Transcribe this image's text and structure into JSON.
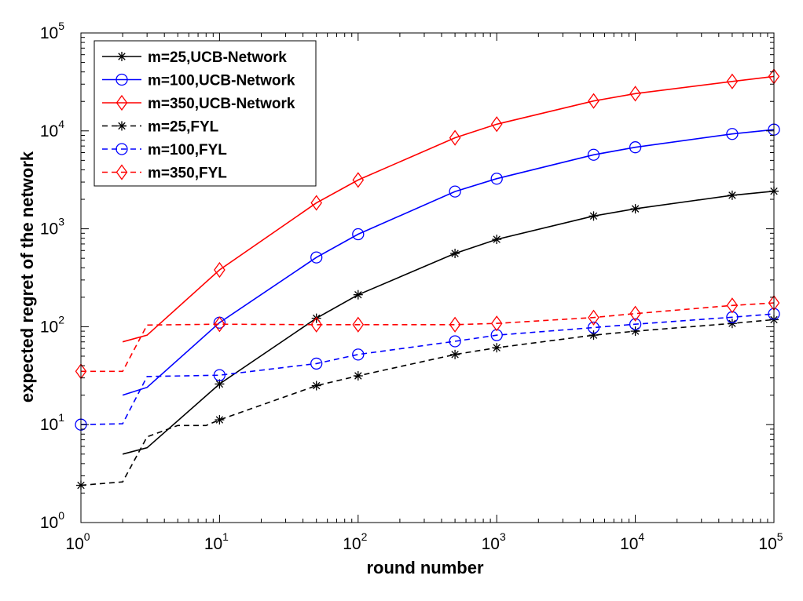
{
  "chart_data": {
    "type": "line",
    "title": "",
    "xlabel": "round number",
    "ylabel": "expected regret of the network",
    "xscale": "log",
    "yscale": "log",
    "xlim": [
      1,
      100000
    ],
    "ylim": [
      1,
      100000
    ],
    "x_ticks": [
      {
        "value": 1,
        "base": "10",
        "exp": "0"
      },
      {
        "value": 10,
        "base": "10",
        "exp": "1"
      },
      {
        "value": 100,
        "base": "10",
        "exp": "2"
      },
      {
        "value": 1000,
        "base": "10",
        "exp": "3"
      },
      {
        "value": 10000,
        "base": "10",
        "exp": "4"
      },
      {
        "value": 100000,
        "base": "10",
        "exp": "5"
      }
    ],
    "y_ticks": [
      {
        "value": 1,
        "base": "10",
        "exp": "0"
      },
      {
        "value": 10,
        "base": "10",
        "exp": "1"
      },
      {
        "value": 100,
        "base": "10",
        "exp": "2"
      },
      {
        "value": 1000,
        "base": "10",
        "exp": "3"
      },
      {
        "value": 10000,
        "base": "10",
        "exp": "4"
      },
      {
        "value": 100000,
        "base": "10",
        "exp": "5"
      }
    ],
    "grid": false,
    "legend_position": "top-left",
    "series": [
      {
        "name": "m=25,UCB-Network",
        "color": "#000000",
        "dash": "solid",
        "marker": "asterisk",
        "x": [
          2,
          3,
          10,
          50,
          100,
          500,
          1000,
          5000,
          10000,
          50000,
          100000
        ],
        "y": [
          5,
          5.8,
          26,
          122,
          212,
          560,
          780,
          1350,
          1600,
          2200,
          2420
        ],
        "marker_x": [
          10,
          50,
          100,
          500,
          1000,
          5000,
          10000,
          50000,
          100000
        ],
        "marker_y": [
          26,
          122,
          212,
          560,
          780,
          1350,
          1600,
          2200,
          2420
        ]
      },
      {
        "name": "m=100,UCB-Network",
        "color": "#0000ff",
        "dash": "solid",
        "marker": "circle",
        "x": [
          2,
          3,
          10,
          50,
          100,
          500,
          1000,
          5000,
          10000,
          50000,
          100000
        ],
        "y": [
          20,
          24,
          110,
          510,
          880,
          2400,
          3250,
          5700,
          6800,
          9300,
          10300
        ],
        "marker_x": [
          10,
          50,
          100,
          500,
          1000,
          5000,
          10000,
          50000,
          100000
        ],
        "marker_y": [
          110,
          510,
          880,
          2400,
          3250,
          5700,
          6800,
          9300,
          10300
        ]
      },
      {
        "name": "m=350,UCB-Network",
        "color": "#ff0000",
        "dash": "solid",
        "marker": "diamond",
        "x": [
          2,
          3,
          10,
          50,
          100,
          500,
          1000,
          5000,
          10000,
          50000,
          100000
        ],
        "y": [
          70,
          82,
          380,
          1840,
          3150,
          8500,
          11700,
          20200,
          24000,
          32000,
          36000
        ],
        "marker_x": [
          10,
          50,
          100,
          500,
          1000,
          5000,
          10000,
          50000,
          100000
        ],
        "marker_y": [
          380,
          1840,
          3150,
          8500,
          11700,
          20200,
          24000,
          32000,
          36000
        ]
      },
      {
        "name": "m=25,FYL",
        "color": "#000000",
        "dash": "dashed",
        "marker": "asterisk",
        "x": [
          1,
          2,
          3,
          5,
          8,
          10,
          50,
          100,
          500,
          1000,
          5000,
          10000,
          50000,
          100000
        ],
        "y": [
          2.4,
          2.6,
          7.5,
          9.8,
          9.8,
          11.2,
          25,
          31.5,
          52,
          61,
          82,
          90,
          108,
          118
        ],
        "marker_x": [
          1,
          10,
          50,
          100,
          500,
          1000,
          5000,
          10000,
          50000,
          100000
        ],
        "marker_y": [
          2.4,
          11.2,
          25,
          31.5,
          52,
          61,
          82,
          90,
          108,
          118
        ]
      },
      {
        "name": "m=100,FYL",
        "color": "#0000ff",
        "dash": "dashed",
        "marker": "circle",
        "x": [
          1,
          2,
          3,
          10,
          50,
          100,
          500,
          1000,
          5000,
          10000,
          50000,
          100000
        ],
        "y": [
          10,
          10.2,
          31,
          32,
          42,
          52,
          71,
          82,
          98,
          106,
          125,
          135
        ],
        "marker_x": [
          1,
          10,
          50,
          100,
          500,
          1000,
          5000,
          10000,
          50000,
          100000
        ],
        "marker_y": [
          10,
          32,
          42,
          52,
          71,
          82,
          98,
          106,
          125,
          135
        ]
      },
      {
        "name": "m=350,FYL",
        "color": "#ff0000",
        "dash": "dashed",
        "marker": "diamond",
        "x": [
          1,
          2,
          3,
          10,
          50,
          100,
          500,
          1000,
          5000,
          10000,
          50000,
          100000
        ],
        "y": [
          35,
          35,
          104,
          106,
          105,
          105,
          105,
          108,
          124,
          136,
          165,
          175
        ],
        "marker_x": [
          1,
          10,
          50,
          100,
          500,
          1000,
          5000,
          10000,
          50000,
          100000
        ],
        "marker_y": [
          35,
          106,
          105,
          105,
          105,
          108,
          124,
          136,
          165,
          175
        ]
      }
    ]
  }
}
